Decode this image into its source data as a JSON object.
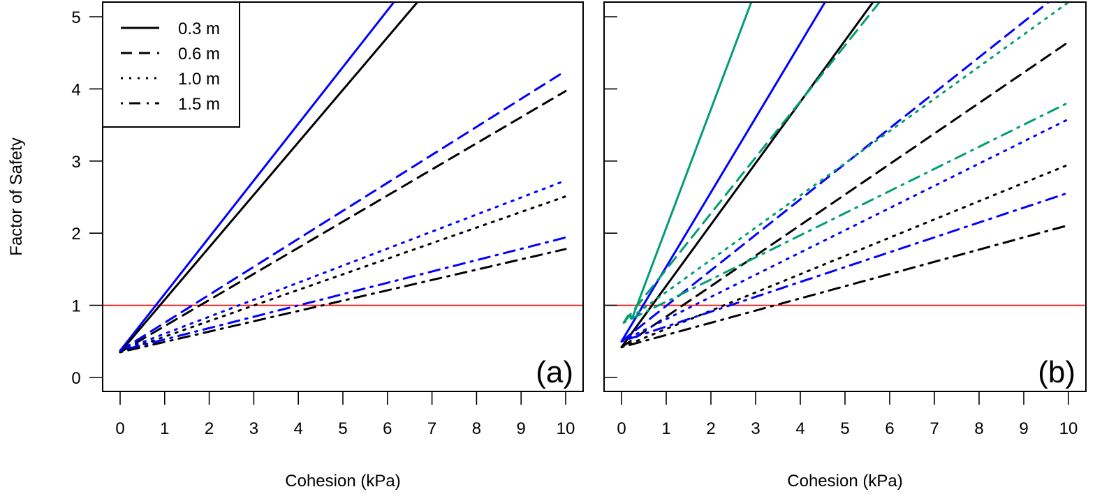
{
  "chart_data": [
    {
      "type": "line",
      "panel_label": "(a)",
      "xlabel": "Cohesion (kPa)",
      "ylabel": "Factor of Safety",
      "xlim": [
        0,
        10
      ],
      "ylim": [
        0,
        5
      ],
      "x_ticks": [
        "0",
        "1",
        "2",
        "3",
        "4",
        "5",
        "6",
        "7",
        "8",
        "9",
        "10"
      ],
      "y_ticks": [
        "0",
        "1",
        "2",
        "3",
        "4",
        "5"
      ],
      "reference_line": {
        "y": 1,
        "color": "#FF0000"
      },
      "legend": {
        "position": "top-left",
        "entries": [
          {
            "label": "0.3 m",
            "dash": "solid"
          },
          {
            "label": "0.6 m",
            "dash": "dashed"
          },
          {
            "label": "1.0 m",
            "dash": "dotted"
          },
          {
            "label": "1.5 m",
            "dash": "dotdash"
          }
        ]
      },
      "series": [
        {
          "name": "blue 0.3 m",
          "color": "#0000FF",
          "dash": "solid",
          "x": [
            0,
            6.18
          ],
          "y": [
            0.37,
            5.23
          ]
        },
        {
          "name": "black 0.3 m",
          "color": "#000000",
          "dash": "solid",
          "x": [
            0,
            6.71
          ],
          "y": [
            0.35,
            5.23
          ]
        },
        {
          "name": "blue 0.6 m",
          "color": "#0000FF",
          "dash": "dashed",
          "x": [
            0,
            10
          ],
          "y": [
            0.37,
            4.25
          ]
        },
        {
          "name": "black 0.6 m",
          "color": "#000000",
          "dash": "dashed",
          "x": [
            0,
            10
          ],
          "y": [
            0.35,
            3.97
          ]
        },
        {
          "name": "blue 1.0 m",
          "color": "#0000FF",
          "dash": "dotted",
          "x": [
            0,
            10
          ],
          "y": [
            0.37,
            2.73
          ]
        },
        {
          "name": "black 1.0 m",
          "color": "#000000",
          "dash": "dotted",
          "x": [
            0,
            10
          ],
          "y": [
            0.35,
            2.51
          ]
        },
        {
          "name": "blue 1.5 m",
          "color": "#0000FF",
          "dash": "dotdash",
          "x": [
            0,
            10
          ],
          "y": [
            0.37,
            1.94
          ]
        },
        {
          "name": "black 1.5 m",
          "color": "#000000",
          "dash": "dotdash",
          "x": [
            0,
            10
          ],
          "y": [
            0.35,
            1.78
          ]
        }
      ]
    },
    {
      "type": "line",
      "panel_label": "(b)",
      "xlabel": "Cohesion (kPa)",
      "ylabel": "",
      "xlim": [
        0,
        10
      ],
      "ylim": [
        0,
        5
      ],
      "x_ticks": [
        "0",
        "1",
        "2",
        "3",
        "4",
        "5",
        "6",
        "7",
        "8",
        "9",
        "10"
      ],
      "y_ticks": [],
      "reference_line": {
        "y": 1,
        "color": "#FF0000"
      },
      "series": [
        {
          "name": "green 0.3 m",
          "color": "#009E73",
          "dash": "solid",
          "x": [
            0.05,
            0.15,
            0.25,
            2.92
          ],
          "y": [
            0.76,
            0.86,
            0.84,
            5.23
          ]
        },
        {
          "name": "blue 0.3 m",
          "color": "#0000FF",
          "dash": "solid",
          "x": [
            0,
            4.58
          ],
          "y": [
            0.5,
            5.23
          ]
        },
        {
          "name": "black 0.3 m",
          "color": "#000000",
          "dash": "solid",
          "x": [
            0,
            5.66
          ],
          "y": [
            0.42,
            5.23
          ]
        },
        {
          "name": "green 0.6 m",
          "color": "#009E73",
          "dash": "dashed",
          "x": [
            0.05,
            5.81
          ],
          "y": [
            0.76,
            5.23
          ]
        },
        {
          "name": "blue 0.6 m",
          "color": "#0000FF",
          "dash": "dashed",
          "x": [
            0,
            9.61
          ],
          "y": [
            0.5,
            5.23
          ]
        },
        {
          "name": "black 0.6 m",
          "color": "#000000",
          "dash": "dashed",
          "x": [
            0,
            10
          ],
          "y": [
            0.42,
            4.65
          ]
        },
        {
          "name": "green 1.0 m",
          "color": "#009E73",
          "dash": "dotted",
          "x": [
            0.05,
            10
          ],
          "y": [
            0.76,
            5.2
          ]
        },
        {
          "name": "blue 1.0 m",
          "color": "#0000FF",
          "dash": "dotted",
          "x": [
            0,
            10
          ],
          "y": [
            0.5,
            3.58
          ]
        },
        {
          "name": "black 1.0 m",
          "color": "#000000",
          "dash": "dotted",
          "x": [
            0,
            10
          ],
          "y": [
            0.42,
            2.95
          ]
        },
        {
          "name": "green 1.5 m",
          "color": "#009E73",
          "dash": "dotdash",
          "x": [
            0.05,
            10
          ],
          "y": [
            0.76,
            3.81
          ]
        },
        {
          "name": "blue 1.5 m",
          "color": "#0000FF",
          "dash": "dotdash",
          "x": [
            0,
            10
          ],
          "y": [
            0.5,
            2.56
          ]
        },
        {
          "name": "black 1.5 m",
          "color": "#000000",
          "dash": "dotdash",
          "x": [
            0,
            10
          ],
          "y": [
            0.42,
            2.11
          ]
        }
      ]
    }
  ]
}
